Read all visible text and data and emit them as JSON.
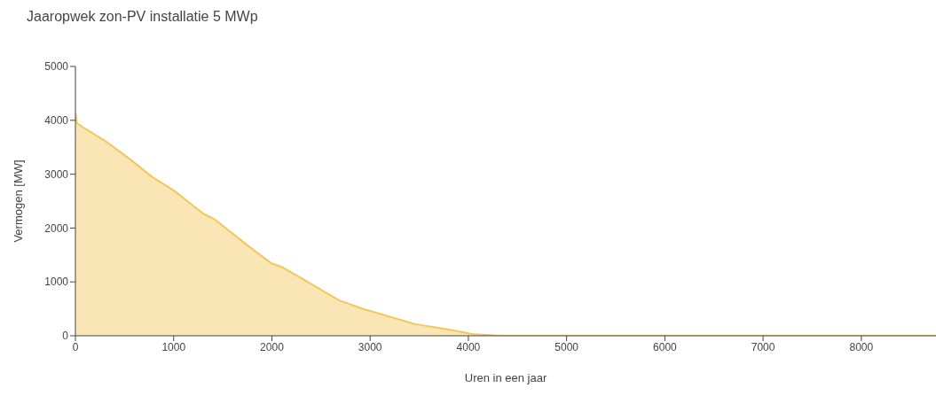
{
  "chart_data": {
    "type": "area",
    "title": "Jaaropwek zon-PV installatie 5 MWp",
    "xlabel": "Uren in een jaar",
    "ylabel": "Vermogen [MW]",
    "x": [
      0,
      15,
      60,
      300,
      540,
      780,
      1000,
      1300,
      1420,
      1750,
      1990,
      2110,
      2290,
      2590,
      2680,
      2950,
      3000,
      3460,
      3790,
      4060,
      4330,
      5000,
      6000,
      7000,
      8000,
      8760
    ],
    "series": [
      {
        "color": "#f5c65a",
        "values": [
          4135,
          3946,
          3890,
          3620,
          3300,
          2950,
          2700,
          2270,
          2160,
          1680,
          1350,
          1270,
          1080,
          757,
          660,
          486,
          460,
          216,
          119,
          27,
          0,
          0,
          0,
          0,
          0,
          0
        ]
      }
    ],
    "xlim": [
      0,
      8760
    ],
    "xticks": [
      0,
      1000,
      2000,
      3000,
      4000,
      5000,
      6000,
      7000,
      8000
    ],
    "ylim": [
      0,
      5000
    ],
    "yticks": [
      0,
      1000,
      2000,
      3000,
      4000,
      5000
    ],
    "grid": false,
    "legend": false
  }
}
